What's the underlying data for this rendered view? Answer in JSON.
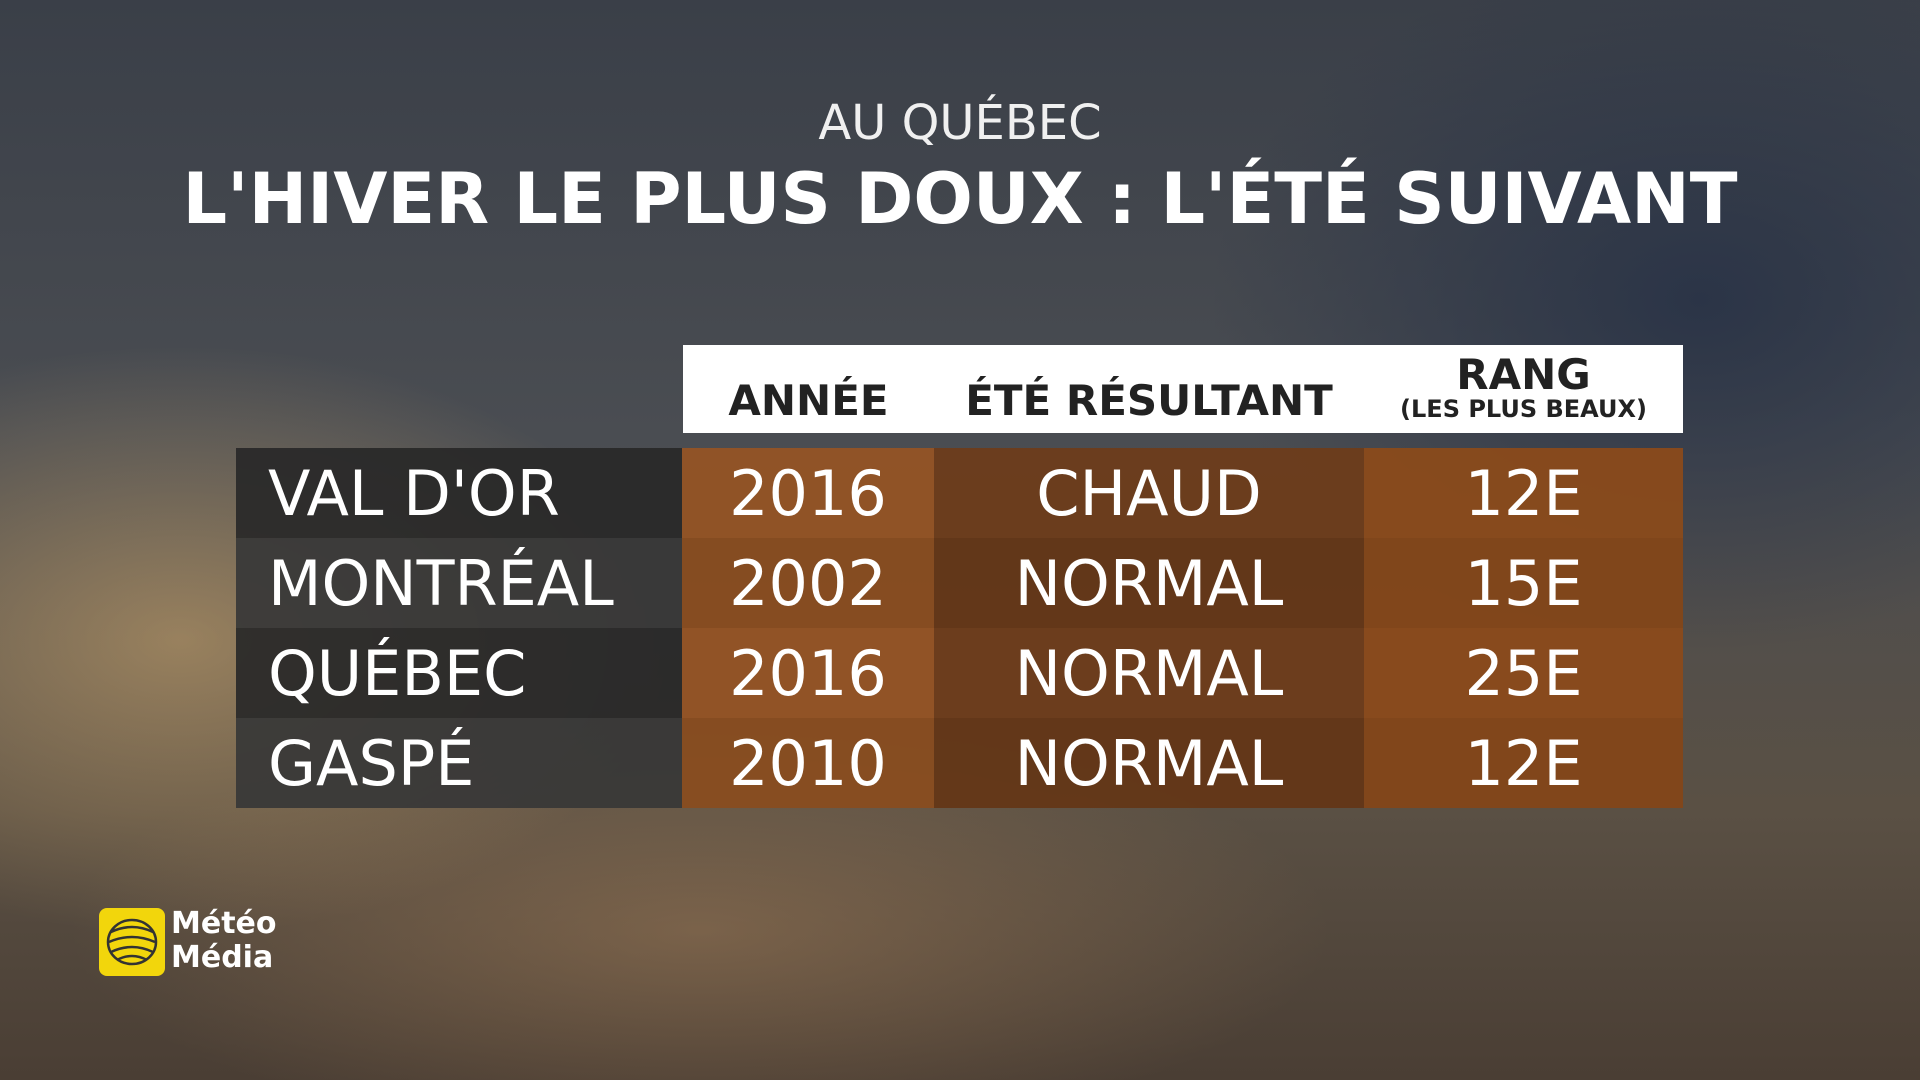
{
  "header": {
    "subtitle": "AU QUÉBEC",
    "title": "L'HIVER LE PLUS DOUX : L'ÉTÉ SUIVANT"
  },
  "table": {
    "columns": [
      "ANNÉE",
      "ÉTÉ RÉSULTANT",
      {
        "label": "RANG",
        "note": "(LES PLUS BEAUX)"
      }
    ],
    "rows": [
      [
        "VAL D'OR",
        "2016",
        "CHAUD",
        "12E"
      ],
      [
        "MONTRÉAL",
        "2002",
        "NORMAL",
        "15E"
      ],
      [
        "QUÉBEC",
        "2016",
        "NORMAL",
        "25E"
      ],
      [
        "GASPÉ",
        "2010",
        "NORMAL",
        "12E"
      ]
    ]
  },
  "logo": {
    "line1": "Météo",
    "line2": "Média"
  }
}
